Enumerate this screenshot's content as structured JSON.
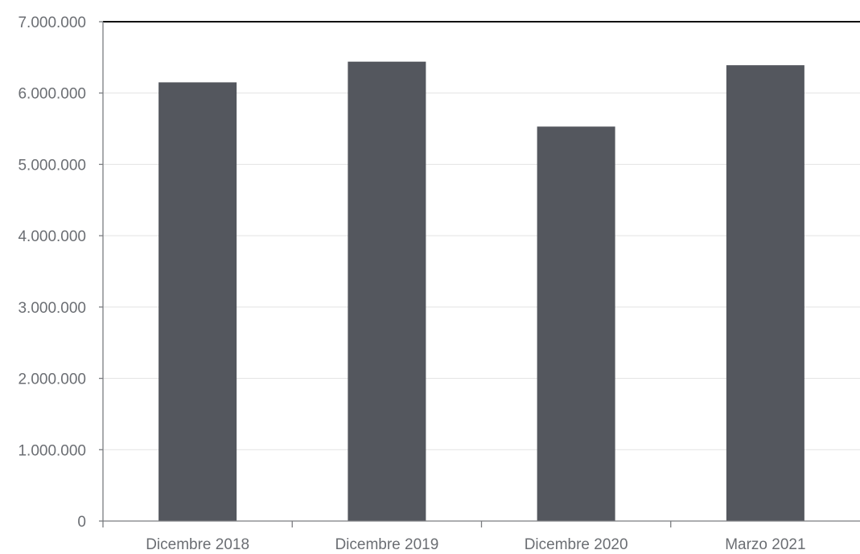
{
  "chart_data": {
    "type": "bar",
    "title": "",
    "xlabel": "",
    "ylabel": "",
    "categories": [
      "Dicembre 2018",
      "Dicembre 2019",
      "Dicembre 2020",
      "Marzo 2021"
    ],
    "values": [
      6150000,
      6440000,
      5530000,
      6390000
    ],
    "ylim": [
      0,
      7000000
    ],
    "yticks": [
      0,
      1000000,
      2000000,
      3000000,
      4000000,
      5000000,
      6000000,
      7000000
    ],
    "ytick_labels": [
      "0",
      "1.000.000",
      "2.000.000",
      "3.000.000",
      "4.000.000",
      "5.000.000",
      "6.000.000",
      "7.000.000"
    ],
    "grid": true,
    "legend": "none",
    "bar_color": "#54575e"
  }
}
